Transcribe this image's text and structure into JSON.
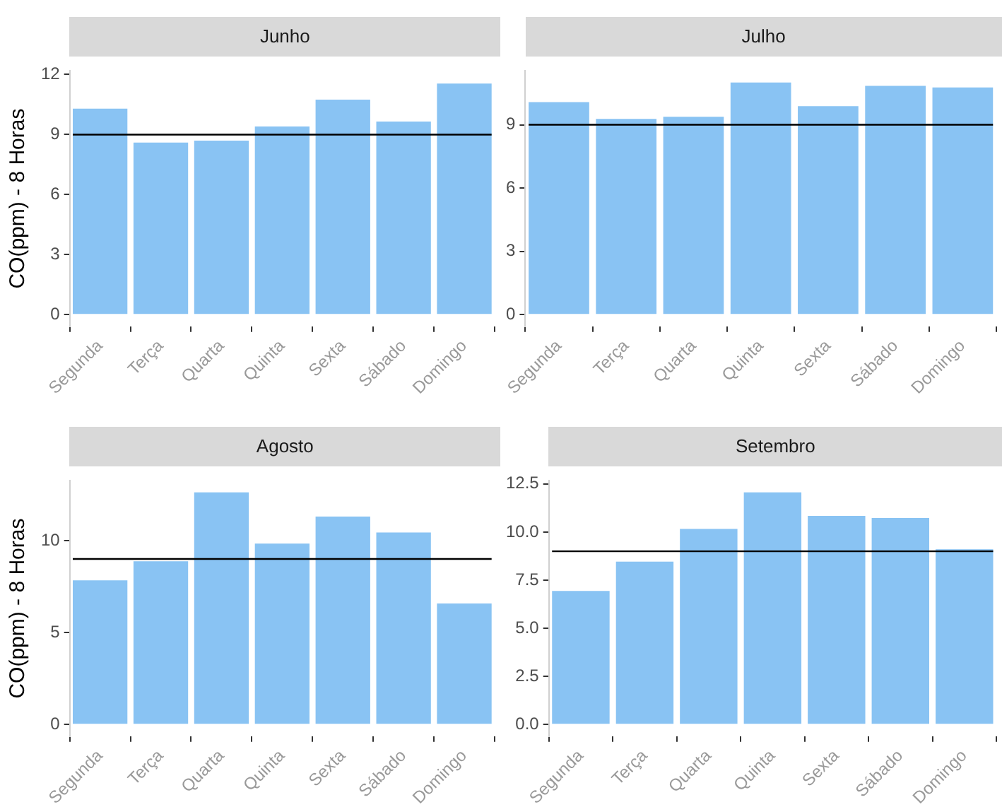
{
  "chart_data": [
    {
      "type": "bar",
      "title": "Junho",
      "ylabel": "CO(ppm) - 8 Horas",
      "categories": [
        "Segunda",
        "Terça",
        "Quarta",
        "Quinta",
        "Sexta",
        "Sábado",
        "Domingo"
      ],
      "values": [
        10.3,
        8.6,
        8.7,
        9.4,
        10.75,
        9.65,
        11.55
      ],
      "color": "#89c3f3",
      "ylim": [
        -0.58,
        12.18
      ],
      "yticks": [
        0,
        3,
        6,
        9,
        12
      ],
      "ref_lines": [
        {
          "axis": "y",
          "value": 9,
          "color": "#000000"
        }
      ]
    },
    {
      "type": "bar",
      "title": "Julho",
      "categories": [
        "Segunda",
        "Terça",
        "Quarta",
        "Quinta",
        "Sexta",
        "Sábado",
        "Domingo"
      ],
      "values": [
        10.07,
        9.28,
        9.38,
        11.0,
        9.88,
        10.84,
        10.77
      ],
      "color": "#89c3f3",
      "ylim": [
        -0.55,
        11.55
      ],
      "yticks": [
        0,
        3,
        6,
        9
      ],
      "ref_lines": [
        {
          "axis": "y",
          "value": 9,
          "color": "#000000"
        }
      ]
    },
    {
      "type": "bar",
      "title": "Agosto",
      "ylabel": "CO(ppm) - 8 Horas",
      "categories": [
        "Segunda",
        "Terça",
        "Quarta",
        "Quinta",
        "Sexta",
        "Sábado",
        "Domingo"
      ],
      "values": [
        7.84,
        8.88,
        12.62,
        9.84,
        11.31,
        10.44,
        6.58
      ],
      "color": "#89c3f3",
      "ylim": [
        -0.63,
        13.25
      ],
      "yticks": [
        0,
        5,
        10
      ],
      "ref_lines": [
        {
          "axis": "y",
          "value": 9,
          "color": "#000000"
        }
      ]
    },
    {
      "type": "bar",
      "title": "Setembro",
      "categories": [
        "Segunda",
        "Terça",
        "Quarta",
        "Quinta",
        "Sexta",
        "Sábado",
        "Domingo"
      ],
      "values": [
        6.94,
        8.46,
        10.16,
        12.06,
        10.84,
        10.73,
        9.11
      ],
      "color": "#89c3f3",
      "ylim": [
        -0.6,
        12.66
      ],
      "yticks": [
        {
          "value": 0,
          "label": "0.0"
        },
        {
          "value": 2.5,
          "label": "2.5"
        },
        {
          "value": 5,
          "label": "5.0"
        },
        {
          "value": 7.5,
          "label": "7.5"
        },
        {
          "value": 10,
          "label": "10.0"
        },
        {
          "value": 12.5,
          "label": "12.5"
        }
      ],
      "ref_lines": [
        {
          "axis": "y",
          "value": 9,
          "color": "#000000"
        }
      ]
    }
  ]
}
